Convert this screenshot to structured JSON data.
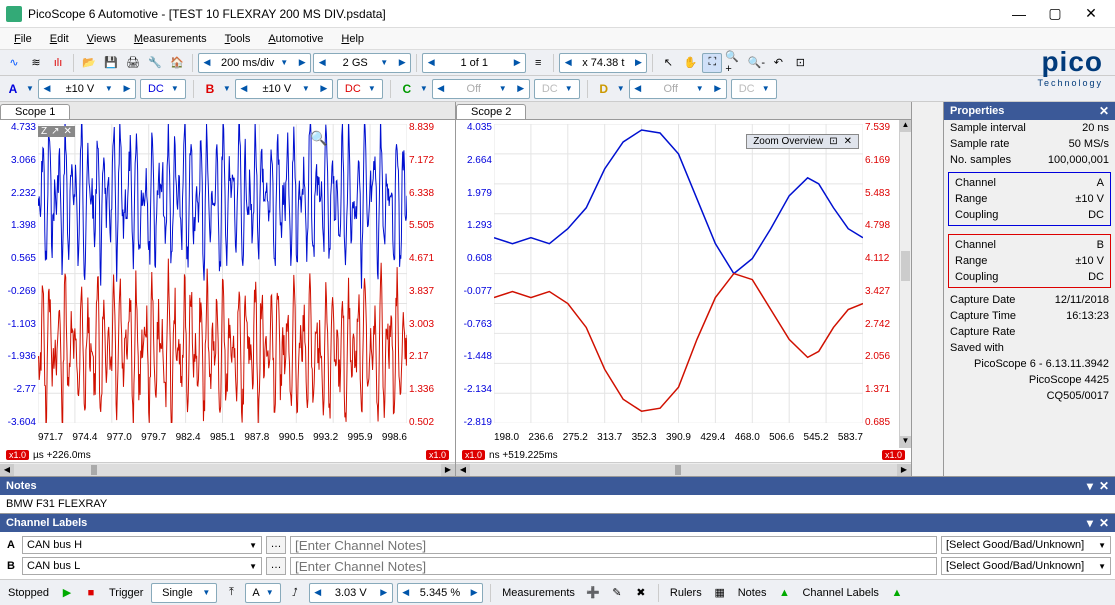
{
  "window": {
    "title": "PicoScope 6 Automotive - [TEST 10 FLEXRAY 200 MS DIV.psdata]"
  },
  "menus": [
    "File",
    "Edit",
    "Views",
    "Measurements",
    "Tools",
    "Automotive",
    "Help"
  ],
  "toolbar1": {
    "timebase": "200 ms/div",
    "samples": "2 GS",
    "of": "1 of 1",
    "zoom": "x 74.38 t"
  },
  "channels": {
    "A": {
      "range": "±10 V",
      "coupling": "DC",
      "on": true
    },
    "B": {
      "range": "±10 V",
      "coupling": "DC",
      "on": true
    },
    "C": {
      "range": "Off",
      "coupling": "DC",
      "on": false
    },
    "D": {
      "range": "Off",
      "coupling": "DC",
      "on": false
    }
  },
  "scope1": {
    "tab": "Scope 1",
    "left_ticks": [
      "4.733",
      "3.066",
      "2.232",
      "1.398",
      "0.565",
      "-0.269",
      "-1.103",
      "-1.936",
      "-2.77",
      "-3.604"
    ],
    "right_ticks": [
      "8.839",
      "7.172",
      "6.338",
      "5.505",
      "4.671",
      "3.837",
      "3.003",
      "2.17",
      "1.336",
      "0.502"
    ],
    "x_ticks": [
      "971.7",
      "974.4",
      "977.0",
      "979.7",
      "982.4",
      "985.1",
      "987.8",
      "990.5",
      "993.2",
      "995.9",
      "998.6"
    ],
    "unit_left": "V",
    "unit_x": "µs",
    "offset_x": "+226.0ms",
    "badge_left": "x1.0",
    "badge_right": "x1.0"
  },
  "scope2": {
    "tab": "Scope 2",
    "left_ticks": [
      "4.035",
      "2.664",
      "1.979",
      "1.293",
      "0.608",
      "-0.077",
      "-0.763",
      "-1.448",
      "-2.134",
      "-2.819"
    ],
    "right_ticks": [
      "7.539",
      "6.169",
      "5.483",
      "4.798",
      "4.112",
      "3.427",
      "2.742",
      "2.056",
      "1.371",
      "0.685"
    ],
    "x_ticks": [
      "198.0",
      "236.6",
      "275.2",
      "313.7",
      "352.3",
      "390.9",
      "429.4",
      "468.0",
      "506.6",
      "545.2",
      "583.7"
    ],
    "unit_left": "V",
    "unit_x": "ns",
    "offset_x": "+519.225ms",
    "zoom_overview": "Zoom Overview",
    "badge_left": "x1.0",
    "badge_right": "x1.0"
  },
  "properties": {
    "title": "Properties",
    "sample_interval_l": "Sample interval",
    "sample_interval_v": "20 ns",
    "sample_rate_l": "Sample rate",
    "sample_rate_v": "50 MS/s",
    "no_samples_l": "No. samples",
    "no_samples_v": "100,000,001",
    "chA": {
      "channel_l": "Channel",
      "channel_v": "A",
      "range_l": "Range",
      "range_v": "±10 V",
      "coupling_l": "Coupling",
      "coupling_v": "DC"
    },
    "chB": {
      "channel_l": "Channel",
      "channel_v": "B",
      "range_l": "Range",
      "range_v": "±10 V",
      "coupling_l": "Coupling",
      "coupling_v": "DC"
    },
    "capture_date_l": "Capture Date",
    "capture_date_v": "12/11/2018",
    "capture_time_l": "Capture Time",
    "capture_time_v": "16:13:23",
    "capture_rate_l": "Capture Rate",
    "saved_with_l": "Saved with",
    "line1": "PicoScope 6 - 6.13.11.3942",
    "line2": "PicoScope 4425",
    "line3": "CQ505/0017"
  },
  "notes": {
    "title": "Notes",
    "body": "BMW F31 FLEXRAY"
  },
  "chanlabels": {
    "title": "Channel Labels",
    "rows": [
      {
        "id": "A",
        "label": "CAN bus H",
        "notes_ph": "[Enter Channel Notes]",
        "gb": "[Select Good/Bad/Unknown]"
      },
      {
        "id": "B",
        "label": "CAN bus L",
        "notes_ph": "[Enter Channel Notes]",
        "gb": "[Select Good/Bad/Unknown]"
      }
    ]
  },
  "statusbar": {
    "stopped": "Stopped",
    "trigger": "Trigger",
    "mode": "Single",
    "ch": "A",
    "level": "3.03 V",
    "pct": "5.345 %",
    "measurements": "Measurements",
    "rulers": "Rulers",
    "notes": "Notes",
    "chlabels": "Channel Labels"
  },
  "logo": {
    "brand": "pico",
    "sub": "Technology"
  },
  "colors": {
    "chA": "#0010d0",
    "chB": "#d01000",
    "grid": "#e4e4e4",
    "bg": "#ffffff",
    "header": "#3b5998"
  },
  "scope2_curve": {
    "blue": [
      [
        0,
        0.38
      ],
      [
        0.05,
        0.4
      ],
      [
        0.1,
        0.38
      ],
      [
        0.15,
        0.4
      ],
      [
        0.2,
        0.35
      ],
      [
        0.25,
        0.28
      ],
      [
        0.3,
        0.15
      ],
      [
        0.35,
        0.06
      ],
      [
        0.4,
        0.02
      ],
      [
        0.45,
        0.03
      ],
      [
        0.5,
        0.1
      ],
      [
        0.55,
        0.25
      ],
      [
        0.6,
        0.4
      ],
      [
        0.65,
        0.5
      ],
      [
        0.7,
        0.45
      ],
      [
        0.75,
        0.35
      ],
      [
        0.8,
        0.24
      ],
      [
        0.85,
        0.18
      ],
      [
        0.88,
        0.2
      ],
      [
        0.92,
        0.28
      ],
      [
        0.96,
        0.35
      ],
      [
        1.0,
        0.38
      ]
    ],
    "red": [
      [
        0,
        0.58
      ],
      [
        0.05,
        0.56
      ],
      [
        0.1,
        0.58
      ],
      [
        0.15,
        0.56
      ],
      [
        0.2,
        0.6
      ],
      [
        0.25,
        0.68
      ],
      [
        0.3,
        0.82
      ],
      [
        0.35,
        0.92
      ],
      [
        0.4,
        0.96
      ],
      [
        0.45,
        0.95
      ],
      [
        0.5,
        0.88
      ],
      [
        0.55,
        0.72
      ],
      [
        0.6,
        0.58
      ],
      [
        0.65,
        0.5
      ],
      [
        0.7,
        0.52
      ],
      [
        0.75,
        0.62
      ],
      [
        0.8,
        0.72
      ],
      [
        0.85,
        0.78
      ],
      [
        0.88,
        0.76
      ],
      [
        0.92,
        0.68
      ],
      [
        0.96,
        0.62
      ],
      [
        1.0,
        0.6
      ]
    ]
  }
}
